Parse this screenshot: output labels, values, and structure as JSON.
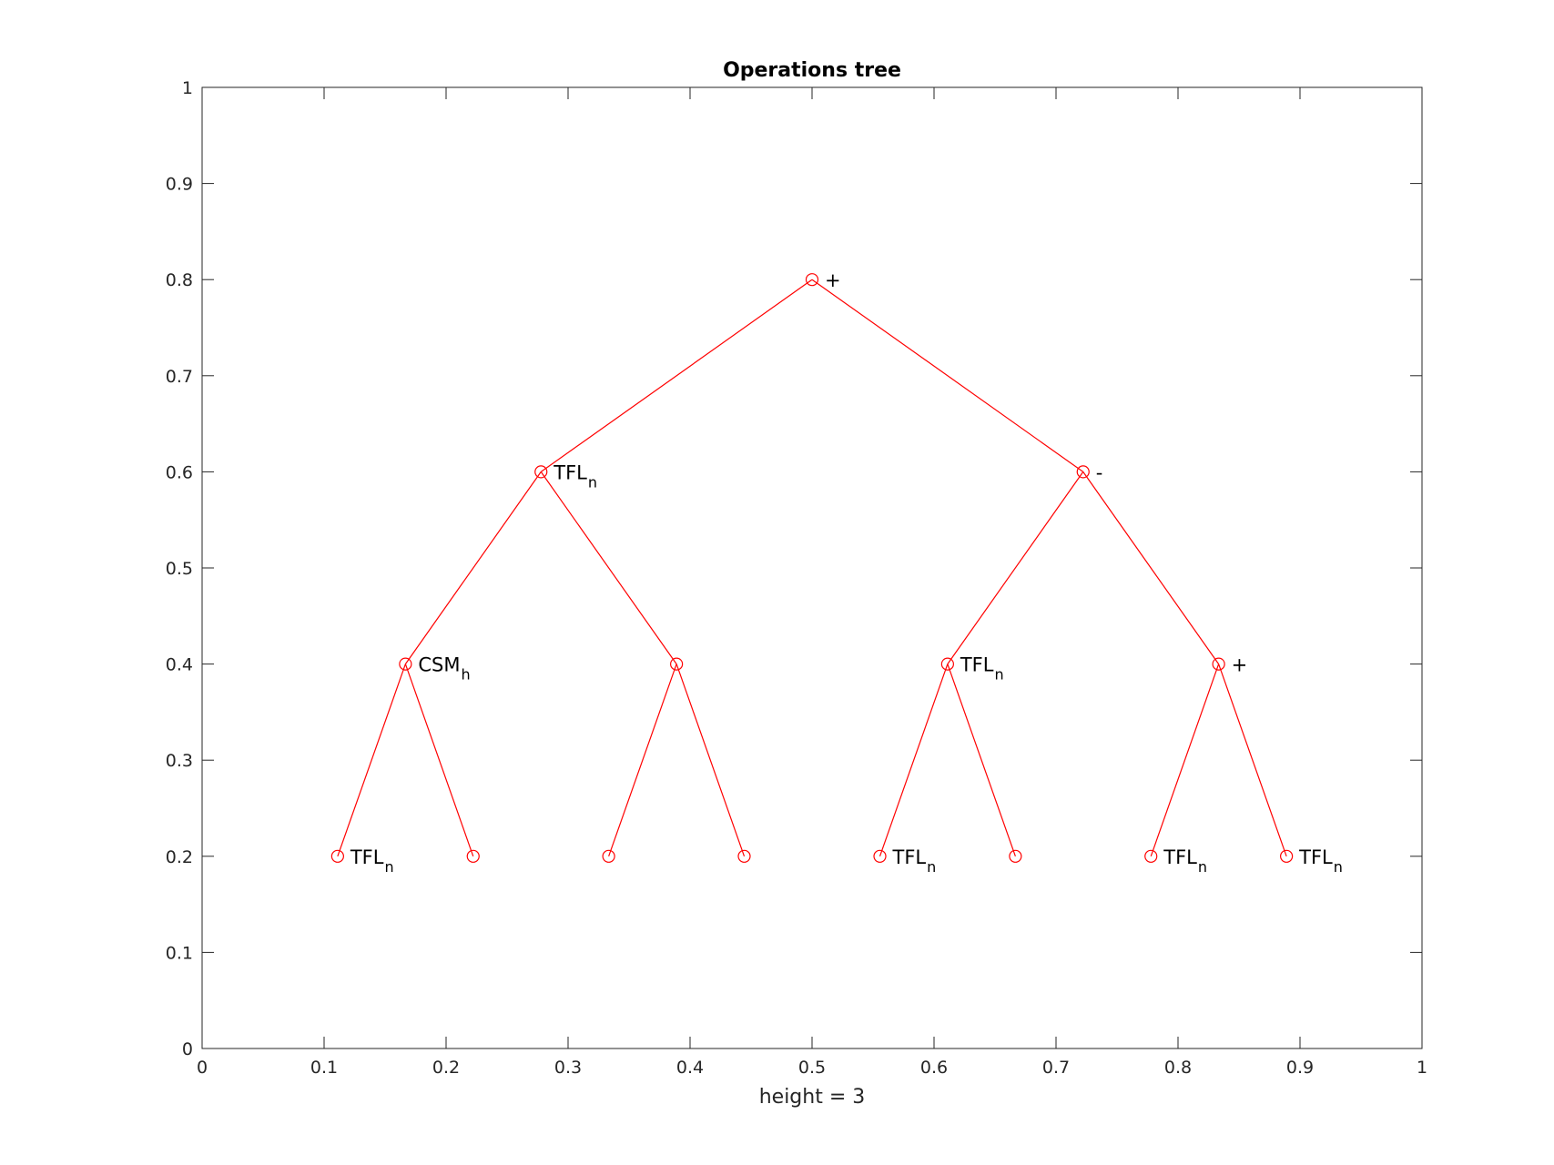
{
  "chart_data": {
    "type": "scatter",
    "title": "Operations tree",
    "xlabel": "height = 3",
    "ylabel": "",
    "xlim": [
      0,
      1
    ],
    "ylim": [
      0,
      1
    ],
    "xticks": [
      "0",
      "0.1",
      "0.2",
      "0.3",
      "0.4",
      "0.5",
      "0.6",
      "0.7",
      "0.8",
      "0.9",
      "1"
    ],
    "yticks": [
      "0",
      "0.1",
      "0.2",
      "0.3",
      "0.4",
      "0.5",
      "0.6",
      "0.7",
      "0.8",
      "0.9",
      "1"
    ],
    "grid": false,
    "line_color": "#ff0000",
    "marker": "circle-open",
    "nodes": [
      {
        "id": "n1",
        "x": 0.5,
        "y": 0.8,
        "label": "+",
        "sub": ""
      },
      {
        "id": "n2",
        "x": 0.2778,
        "y": 0.6,
        "label": "TFL",
        "sub": "n"
      },
      {
        "id": "n3",
        "x": 0.7222,
        "y": 0.6,
        "label": "-",
        "sub": ""
      },
      {
        "id": "n4",
        "x": 0.1667,
        "y": 0.4,
        "label": "CSM",
        "sub": "h"
      },
      {
        "id": "n5",
        "x": 0.3889,
        "y": 0.4,
        "label": "",
        "sub": ""
      },
      {
        "id": "n6",
        "x": 0.6111,
        "y": 0.4,
        "label": "TFL",
        "sub": "n"
      },
      {
        "id": "n7",
        "x": 0.8333,
        "y": 0.4,
        "label": "+",
        "sub": ""
      },
      {
        "id": "n8",
        "x": 0.1111,
        "y": 0.2,
        "label": "TFL",
        "sub": "n"
      },
      {
        "id": "n9",
        "x": 0.2222,
        "y": 0.2,
        "label": "",
        "sub": ""
      },
      {
        "id": "n10",
        "x": 0.3333,
        "y": 0.2,
        "label": "",
        "sub": ""
      },
      {
        "id": "n11",
        "x": 0.4444,
        "y": 0.2,
        "label": "",
        "sub": ""
      },
      {
        "id": "n12",
        "x": 0.5556,
        "y": 0.2,
        "label": "TFL",
        "sub": "n"
      },
      {
        "id": "n13",
        "x": 0.6667,
        "y": 0.2,
        "label": "",
        "sub": ""
      },
      {
        "id": "n14",
        "x": 0.7778,
        "y": 0.2,
        "label": "TFL",
        "sub": "n"
      },
      {
        "id": "n15",
        "x": 0.8889,
        "y": 0.2,
        "label": "TFL",
        "sub": "n"
      }
    ],
    "edges": [
      [
        "n1",
        "n2"
      ],
      [
        "n1",
        "n3"
      ],
      [
        "n2",
        "n4"
      ],
      [
        "n2",
        "n5"
      ],
      [
        "n3",
        "n6"
      ],
      [
        "n3",
        "n7"
      ],
      [
        "n4",
        "n8"
      ],
      [
        "n4",
        "n9"
      ],
      [
        "n5",
        "n10"
      ],
      [
        "n5",
        "n11"
      ],
      [
        "n6",
        "n12"
      ],
      [
        "n6",
        "n13"
      ],
      [
        "n7",
        "n14"
      ],
      [
        "n7",
        "n15"
      ]
    ]
  }
}
